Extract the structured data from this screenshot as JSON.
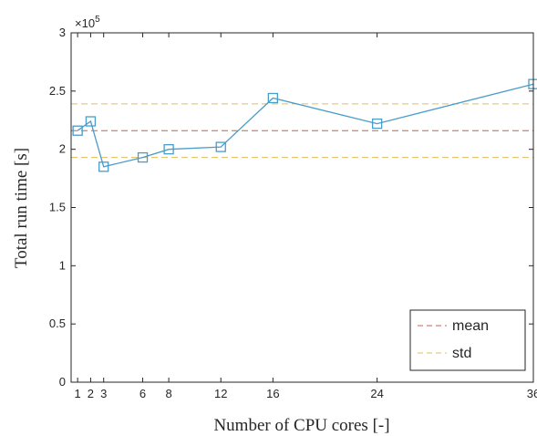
{
  "chart_data": {
    "type": "line",
    "xlabel": "Number of CPU cores [-]",
    "ylabel": "Total run time [s]",
    "y_exponent_label": {
      "base": "×10",
      "power": "5"
    },
    "xlim": [
      0.5,
      36
    ],
    "ylim": [
      0,
      3
    ],
    "x_ticks": [
      1,
      2,
      3,
      6,
      8,
      12,
      16,
      24,
      36
    ],
    "y_ticks": [
      0,
      0.5,
      1,
      1.5,
      2,
      2.5,
      3
    ],
    "y_tick_labels": [
      "0",
      "0.5",
      "1",
      "1.5",
      "2",
      "2.5",
      "3"
    ],
    "grid": false,
    "legend_position": "bottom-right",
    "series": [
      {
        "name": "",
        "color": "#4a9cc9",
        "marker": "square",
        "x": [
          1,
          2,
          3,
          6,
          8,
          12,
          16,
          24,
          36
        ],
        "y": [
          2.16,
          2.24,
          1.85,
          1.93,
          2.0,
          2.02,
          2.44,
          2.22,
          2.56
        ]
      }
    ],
    "reference_lines": [
      {
        "name": "mean",
        "y": 2.16,
        "color": "#c9624f",
        "style": "dashed"
      },
      {
        "name": "std",
        "y": 2.39,
        "color": "#e3bc5a",
        "style": "dashed"
      },
      {
        "name": "std",
        "y": 1.93,
        "color": "#e3bc5a",
        "style": "dashed"
      }
    ],
    "legend": [
      {
        "label": "mean",
        "color": "#c9624f"
      },
      {
        "label": "std",
        "color": "#e3bc5a"
      }
    ]
  }
}
